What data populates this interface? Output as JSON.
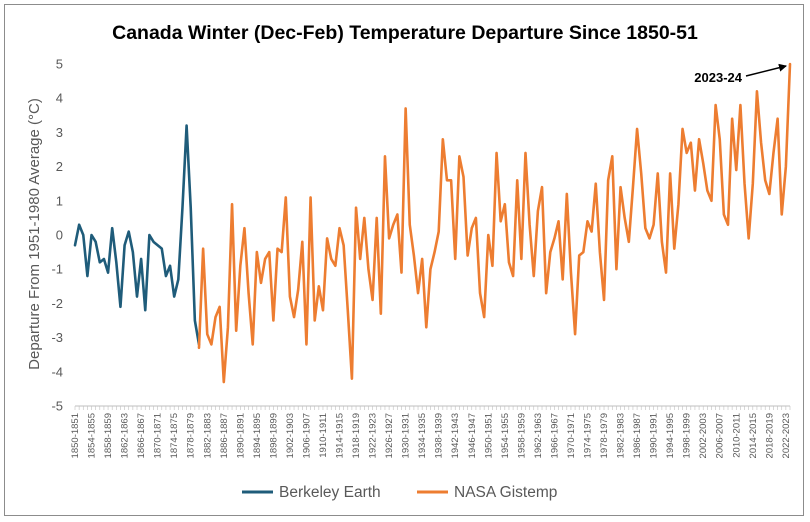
{
  "chart_data": {
    "type": "line",
    "title": "Canada Winter (Dec-Feb) Temperature Departure Since 1850-51",
    "xlabel": "",
    "ylabel": "Departure From 1951-1980 Average (°C)",
    "ylim": [
      -5,
      5
    ],
    "yticks": [
      5,
      4,
      3,
      2,
      1,
      0,
      -1,
      -2,
      -3,
      -4,
      -5
    ],
    "x_start_year": 1850,
    "x_end_year": 2023,
    "x_tick_labels": [
      "1850-1851",
      "1854-1855",
      "1858-1859",
      "1862-1863",
      "1866-1867",
      "1870-1871",
      "1874-1875",
      "1878-1879",
      "1882-1883",
      "1886-1887",
      "1890-1891",
      "1894-1895",
      "1898-1899",
      "1902-1903",
      "1906-1907",
      "1910-1911",
      "1914-1915",
      "1918-1919",
      "1922-1923",
      "1926-1927",
      "1930-1931",
      "1934-1935",
      "1938-1939",
      "1942-1943",
      "1946-1947",
      "1950-1951",
      "1954-1955",
      "1958-1959",
      "1962-1963",
      "1966-1967",
      "1970-1971",
      "1974-1975",
      "1978-1979",
      "1982-1983",
      "1986-1987",
      "1990-1991",
      "1994-1995",
      "1998-1999",
      "2002-2003",
      "2006-2007",
      "2010-2011",
      "2014-2015",
      "2018-2019",
      "2022-2023"
    ],
    "series": [
      {
        "name": "Berkeley Earth",
        "color": "#1f5c7a",
        "start_year": 1850,
        "values": [
          -0.3,
          0.3,
          0.0,
          -1.2,
          0.0,
          -0.2,
          -0.8,
          -0.7,
          -1.1,
          0.2,
          -0.8,
          -2.1,
          -0.3,
          0.1,
          -0.5,
          -1.8,
          -0.7,
          -2.2,
          0.0,
          -0.2,
          -0.3,
          -0.4,
          -1.2,
          -0.9,
          -1.8,
          -1.3,
          0.8,
          3.2,
          0.8,
          -2.5,
          -3.2
        ]
      },
      {
        "name": "NASA Gistemp",
        "color": "#ed7d31",
        "start_year": 1880,
        "values": [
          -3.3,
          -0.4,
          -2.9,
          -3.2,
          -2.4,
          -2.1,
          -4.3,
          -2.7,
          0.9,
          -2.8,
          -0.9,
          0.2,
          -1.7,
          -3.2,
          -0.5,
          -1.4,
          -0.7,
          -0.5,
          -2.5,
          -0.4,
          -0.5,
          1.1,
          -1.8,
          -2.4,
          -1.6,
          -0.2,
          -3.2,
          1.1,
          -2.5,
          -1.5,
          -2.2,
          -0.1,
          -0.7,
          -0.9,
          0.2,
          -0.3,
          -2.2,
          -4.2,
          0.8,
          -0.7,
          0.5,
          -1.0,
          -1.9,
          0.5,
          -2.3,
          2.3,
          -0.1,
          0.3,
          0.6,
          -1.1,
          3.7,
          0.3,
          -0.6,
          -1.7,
          -0.7,
          -2.7,
          -1.0,
          -0.5,
          0.1,
          2.8,
          1.6,
          1.6,
          -0.7,
          2.3,
          1.7,
          -0.6,
          0.2,
          0.5,
          -1.7,
          -2.4,
          0.0,
          -0.9,
          2.4,
          0.4,
          0.9,
          -0.8,
          -1.2,
          1.6,
          -0.7,
          2.4,
          0.3,
          -1.2,
          0.7,
          1.4,
          -1.7,
          -0.5,
          -0.1,
          0.4,
          -1.3,
          1.2,
          -1.1,
          -2.9,
          -0.6,
          -0.5,
          0.4,
          0.1,
          1.5,
          -0.5,
          -1.9,
          1.6,
          2.3,
          -1.0,
          1.4,
          0.5,
          -0.2,
          1.4,
          3.1,
          1.8,
          0.2,
          -0.1,
          0.3,
          1.8,
          -0.2,
          -1.1,
          1.8,
          -0.4,
          0.9,
          3.1,
          2.4,
          2.7,
          1.3,
          2.8,
          2.1,
          1.3,
          1.0,
          3.8,
          2.8,
          0.6,
          0.3,
          3.4,
          1.9,
          3.8,
          1.5,
          -0.1,
          1.5,
          4.2,
          2.7,
          1.6,
          1.2,
          2.4,
          3.4,
          0.6,
          2.0,
          5.0
        ]
      }
    ],
    "annotations": [
      {
        "text": "2023-24",
        "year": 2023,
        "value": 5.0
      }
    ],
    "legend": {
      "position": "bottom",
      "entries": [
        "Berkeley Earth",
        "NASA Gistemp"
      ]
    },
    "grid": false
  }
}
